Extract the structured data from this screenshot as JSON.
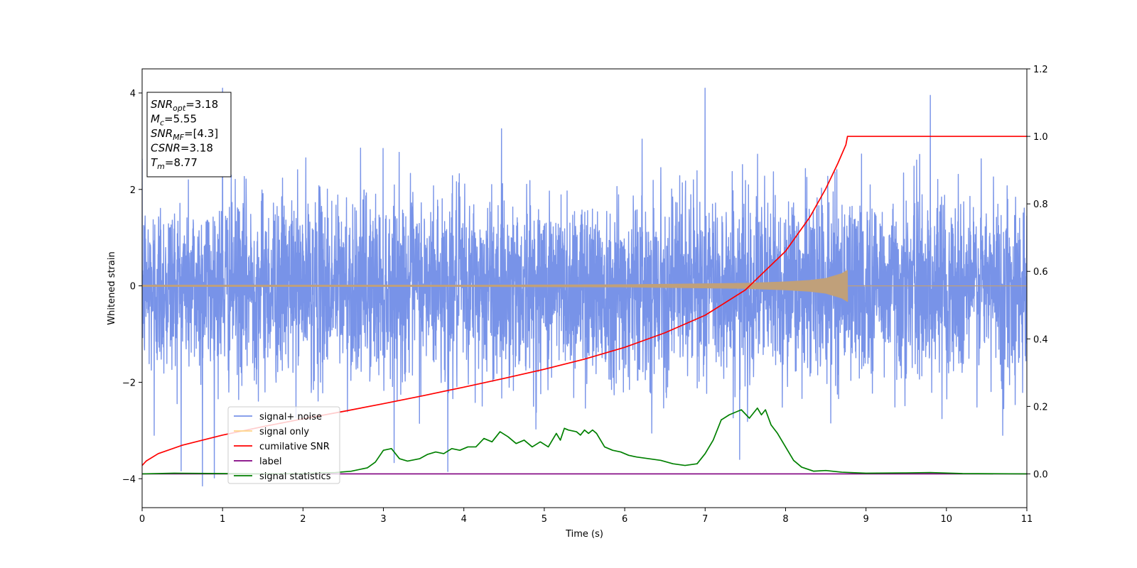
{
  "chart_data": {
    "type": "line",
    "title": "",
    "xlabel": "Time (s)",
    "ylabel": "Whitened strain",
    "xlim": [
      0,
      11
    ],
    "ylim_left": [
      -4.6,
      4.5
    ],
    "ylim_right": [
      -0.1,
      1.2
    ],
    "x_ticks": [
      0,
      1,
      2,
      3,
      4,
      5,
      6,
      7,
      8,
      9,
      10,
      11
    ],
    "y_ticks_left": [
      -4,
      -2,
      0,
      2,
      4
    ],
    "y_ticks_right": [
      0.0,
      0.2,
      0.4,
      0.6,
      0.8,
      1.0,
      1.2
    ],
    "grid": false,
    "legend_position": "lower-left",
    "info_box": [
      {
        "label": "SNR",
        "sub": "opt",
        "value": "=3.18"
      },
      {
        "label": "M",
        "sub": "c",
        "value": "=5.55"
      },
      {
        "label": "SNR",
        "sub": "MF",
        "value": "=[4.3]"
      },
      {
        "label": "CSNR",
        "sub": "",
        "value": "=3.18"
      },
      {
        "label": "T",
        "sub": "m",
        "value": "=8.77"
      }
    ],
    "series": [
      {
        "name": "signal+ noise",
        "axis": "left",
        "color": "#7893e8",
        "kind": "noise",
        "std": 0.95,
        "x_range": [
          0,
          11
        ],
        "peaks": [
          [
            0.75,
            -4.15
          ],
          [
            1.0,
            4.1
          ],
          [
            7.0,
            4.1
          ],
          [
            9.8,
            3.95
          ],
          [
            7.43,
            -3.6
          ],
          [
            3.8,
            -3.85
          ],
          [
            0.15,
            -3.1
          ],
          [
            10.7,
            -3.1
          ]
        ]
      },
      {
        "name": "signal only",
        "axis": "left",
        "color": "#c0a07a",
        "kind": "chirp",
        "x": [
          0,
          2,
          4,
          5,
          6,
          7,
          7.5,
          8,
          8.3,
          8.5,
          8.7,
          8.77
        ],
        "amplitude": [
          0.02,
          0.02,
          0.02,
          0.025,
          0.03,
          0.05,
          0.06,
          0.09,
          0.12,
          0.16,
          0.26,
          0.33
        ],
        "end_x": 8.77
      },
      {
        "name": "cumilative SNR",
        "axis": "right",
        "color": "#ff0000",
        "x": [
          0,
          0.05,
          0.2,
          0.5,
          1,
          1.5,
          2,
          2.5,
          3,
          3.5,
          4,
          4.5,
          5,
          5.5,
          6,
          6.5,
          7,
          7.5,
          8,
          8.3,
          8.5,
          8.65,
          8.75,
          8.77,
          9,
          10,
          11
        ],
        "values": [
          0.025,
          0.038,
          0.06,
          0.085,
          0.115,
          0.14,
          0.163,
          0.185,
          0.208,
          0.232,
          0.257,
          0.283,
          0.31,
          0.34,
          0.375,
          0.418,
          0.47,
          0.545,
          0.66,
          0.76,
          0.845,
          0.92,
          0.975,
          1.0,
          1.0,
          1.0,
          1.0
        ]
      },
      {
        "name": "label",
        "axis": "right",
        "color": "#800080",
        "x": [
          0,
          11
        ],
        "values": [
          0.0,
          0.0
        ]
      },
      {
        "name": "signal statistics",
        "axis": "right",
        "color": "#008000",
        "x": [
          0,
          0.4,
          1.0,
          1.5,
          2.0,
          2.4,
          2.6,
          2.8,
          2.9,
          3.0,
          3.1,
          3.2,
          3.3,
          3.45,
          3.55,
          3.65,
          3.75,
          3.85,
          3.95,
          4.05,
          4.15,
          4.25,
          4.35,
          4.45,
          4.55,
          4.65,
          4.75,
          4.85,
          4.95,
          5.05,
          5.15,
          5.2,
          5.25,
          5.3,
          5.4,
          5.45,
          5.5,
          5.55,
          5.6,
          5.65,
          5.75,
          5.85,
          5.95,
          6.05,
          6.15,
          6.3,
          6.45,
          6.6,
          6.75,
          6.9,
          7.0,
          7.1,
          7.2,
          7.3,
          7.45,
          7.55,
          7.65,
          7.7,
          7.75,
          7.82,
          7.9,
          8.0,
          8.1,
          8.2,
          8.35,
          8.5,
          8.7,
          9.0,
          9.5,
          9.8,
          10.2,
          11.0
        ],
        "values": [
          0.0,
          0.002,
          0.001,
          0.0,
          0.001,
          0.004,
          0.008,
          0.018,
          0.035,
          0.07,
          0.075,
          0.045,
          0.038,
          0.045,
          0.058,
          0.065,
          0.06,
          0.075,
          0.07,
          0.08,
          0.08,
          0.105,
          0.095,
          0.125,
          0.11,
          0.09,
          0.1,
          0.08,
          0.095,
          0.08,
          0.12,
          0.1,
          0.135,
          0.13,
          0.125,
          0.115,
          0.13,
          0.12,
          0.13,
          0.12,
          0.08,
          0.07,
          0.065,
          0.055,
          0.05,
          0.045,
          0.04,
          0.03,
          0.025,
          0.03,
          0.06,
          0.1,
          0.16,
          0.175,
          0.19,
          0.165,
          0.195,
          0.175,
          0.19,
          0.145,
          0.12,
          0.08,
          0.04,
          0.02,
          0.008,
          0.01,
          0.005,
          0.002,
          0.003,
          0.004,
          0.001,
          0.0
        ]
      }
    ]
  }
}
